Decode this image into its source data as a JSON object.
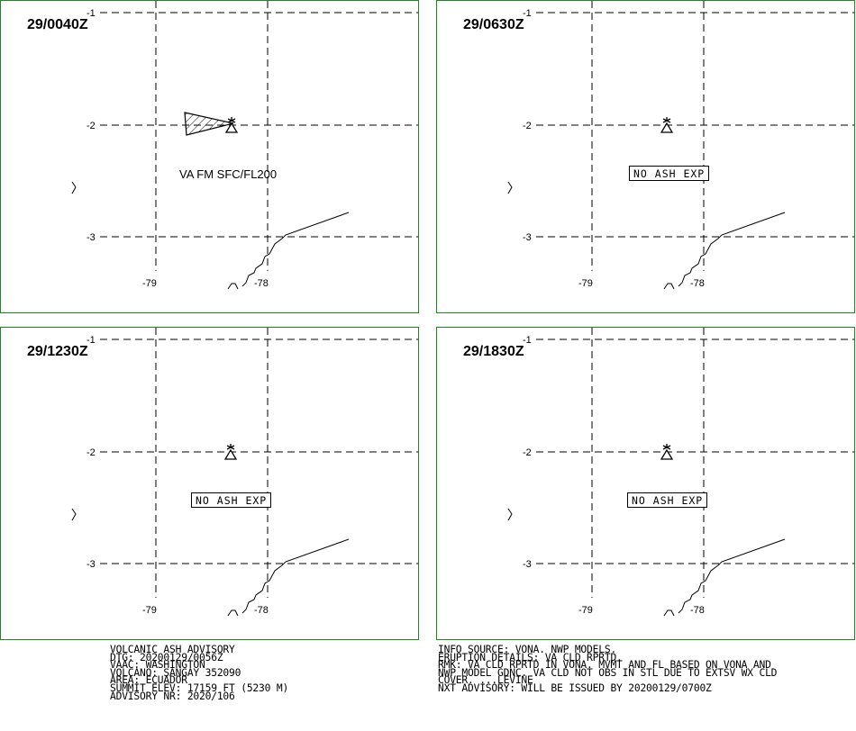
{
  "panels": [
    {
      "time": "29/0040Z",
      "label": "VA FM SFC/FL200",
      "kind": "ash"
    },
    {
      "time": "29/0630Z",
      "label": "NO ASH EXP",
      "kind": "none"
    },
    {
      "time": "29/1230Z",
      "label": "NO ASH EXP",
      "kind": "none"
    },
    {
      "time": "29/1830Z",
      "label": "NO ASH EXP",
      "kind": "none"
    }
  ],
  "ticks": {
    "lat_top": "-1",
    "lat_mid": "-2",
    "lat_bot": "-3",
    "lon_left": "-79",
    "lon_right": "-78"
  },
  "advisory_left": [
    "VOLCANIC ASH ADVISORY",
    "DTG: 20200129/0056Z",
    "VAAC: WASHINGTON",
    "VOLCANO: SANGAY 352090",
    "AREA: ECUADOR",
    "SUMMIT ELEV: 17159 FT (5230 M)",
    "ADVISORY NR: 2020/106"
  ],
  "advisory_right": [
    "INFO SOURCE: VONA. NWP MODELS.",
    "ERUPTION DETAILS: VA CLD RPRTD.",
    "RMK: VA CLD RPRTD IN VONA. MVMT AND FL BASED ON VONA AND",
    "NWP MODEL GDNC. VA CLD NOT OBS IN STL DUE TO EXTSV WX CLD",
    "COVER. ...LEVINE",
    "NXT ADVISORY: WILL BE ISSUED BY 20200129/0700Z"
  ],
  "colors": {
    "panel_border": "#1a8a1a",
    "lines": "#000000"
  }
}
